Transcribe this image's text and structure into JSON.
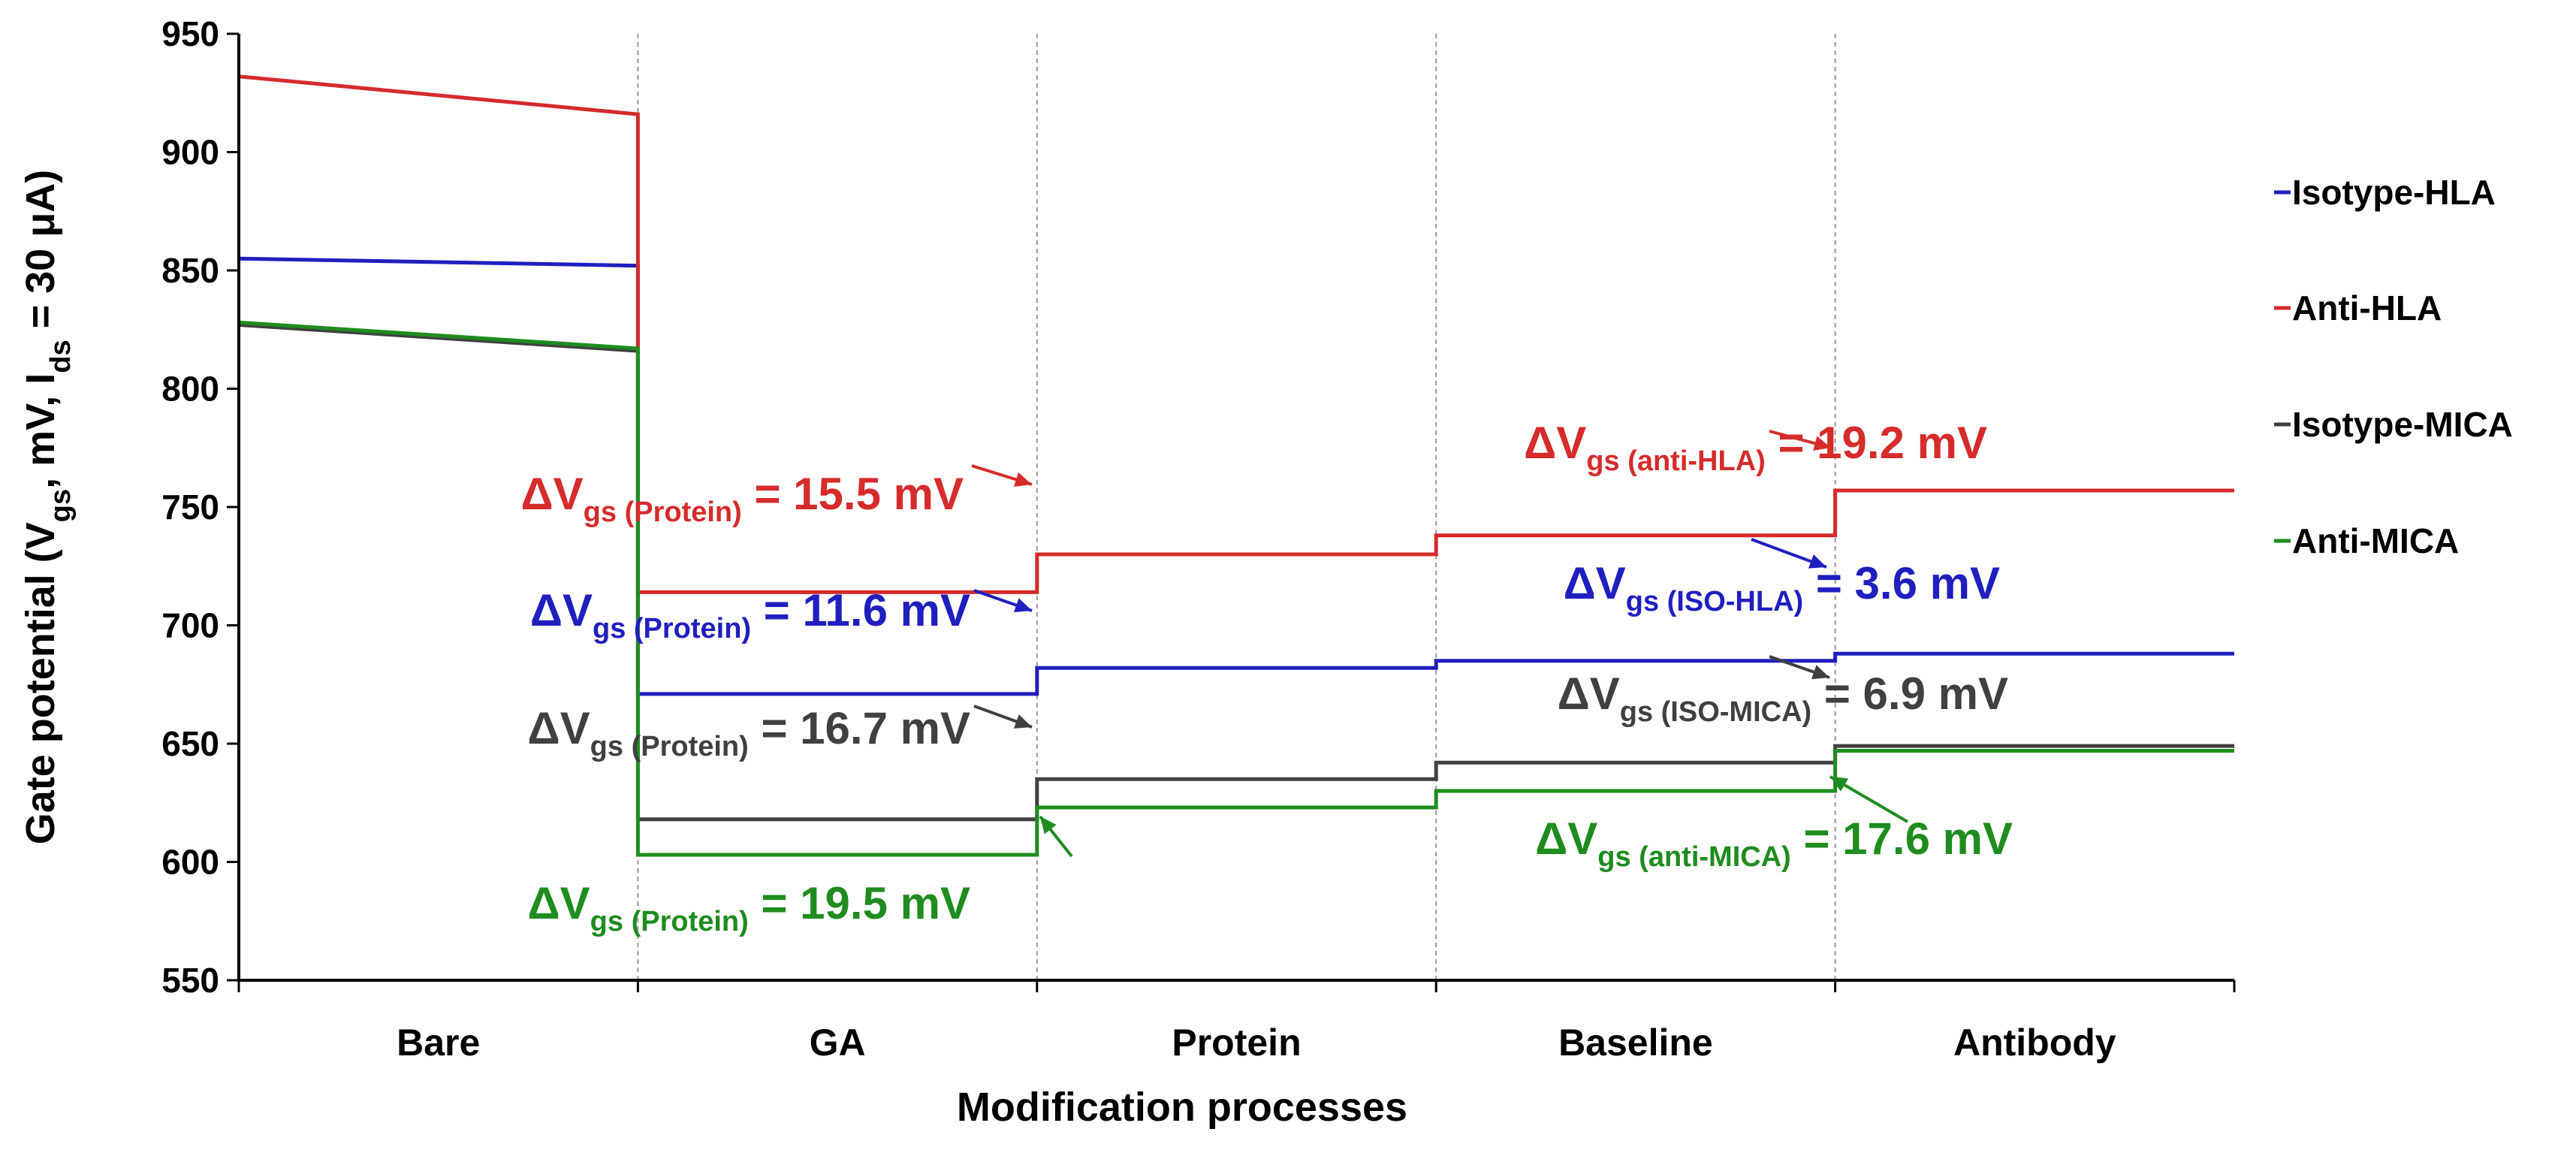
{
  "chart_data": {
    "type": "line",
    "subtype": "step",
    "title": "",
    "xlabel": "Modification processes",
    "ylabel": {
      "base": "Gate potential (V",
      "sub1": "gs",
      "mid": ", mV, I",
      "sub2": "ds",
      "end": " = 30 μA)"
    },
    "categories": [
      "Bare",
      "GA",
      "Protein",
      "Baseline",
      "Antibody"
    ],
    "ylim": [
      550,
      950
    ],
    "yticks": [
      "550",
      "600",
      "650",
      "700",
      "750",
      "800",
      "850",
      "900",
      "950"
    ],
    "grid": {
      "horizontal": false,
      "vertical_dashed_category_boundaries": true
    },
    "legend": {
      "placement": "right"
    },
    "series": [
      {
        "name": "Isotype-HLA",
        "color": "#1f1fbf",
        "values": [
          [
            855,
            852
          ],
          [
            671,
            671
          ],
          [
            682,
            682
          ],
          [
            685,
            685
          ],
          [
            688,
            688
          ]
        ]
      },
      {
        "name": "Anti-HLA",
        "color": "#d62b2b",
        "values": [
          [
            932,
            916
          ],
          [
            714,
            714
          ],
          [
            730,
            730
          ],
          [
            738,
            738
          ],
          [
            757,
            757
          ]
        ]
      },
      {
        "name": "Isotype-MICA",
        "color": "#404040",
        "values": [
          [
            827,
            816
          ],
          [
            618,
            618
          ],
          [
            635,
            635
          ],
          [
            642,
            642
          ],
          [
            649,
            649
          ]
        ]
      },
      {
        "name": "Anti-MICA",
        "color": "#1e8c1e",
        "values": [
          [
            828,
            817
          ],
          [
            603,
            603
          ],
          [
            623,
            623
          ],
          [
            630,
            630
          ],
          [
            647,
            647
          ]
        ]
      }
    ],
    "annotations": [
      {
        "series": "Anti-HLA",
        "main": "ΔV",
        "sub1": "gs",
        "sub2": "(Protein)",
        "value": "= 15.5 mV",
        "color": "#d62b2b"
      },
      {
        "series": "Isotype-HLA",
        "main": "ΔV",
        "sub1": "gs",
        "sub2": "(Protein)",
        "value": "= 11.6 mV",
        "color": "#1f1fbf"
      },
      {
        "series": "Isotype-MICA",
        "main": "ΔV",
        "sub1": "gs",
        "sub2": "(Protein)",
        "value": "= 16.7 mV",
        "color": "#404040"
      },
      {
        "series": "Anti-MICA",
        "main": "ΔV",
        "sub1": "gs",
        "sub2": "(Protein)",
        "value": "= 19.5 mV",
        "color": "#1e8c1e"
      },
      {
        "series": "Anti-HLA",
        "main": "ΔV",
        "sub1": "gs",
        "sub2": "(anti-HLA)",
        "value": "= 19.2 mV",
        "color": "#d62b2b"
      },
      {
        "series": "Isotype-HLA",
        "main": "ΔV",
        "sub1": "gs",
        "sub2": "(ISO-HLA)",
        "value": "= 3.6 mV",
        "color": "#1f1fbf"
      },
      {
        "series": "Isotype-MICA",
        "main": "ΔV",
        "sub1": "gs",
        "sub2": "(ISO-MICA)",
        "value": "= 6.9 mV",
        "color": "#404040"
      },
      {
        "series": "Anti-MICA",
        "main": "ΔV",
        "sub1": "gs",
        "sub2": "(anti-MICA)",
        "value": "= 17.6 mV",
        "color": "#1e8c1e"
      }
    ]
  }
}
